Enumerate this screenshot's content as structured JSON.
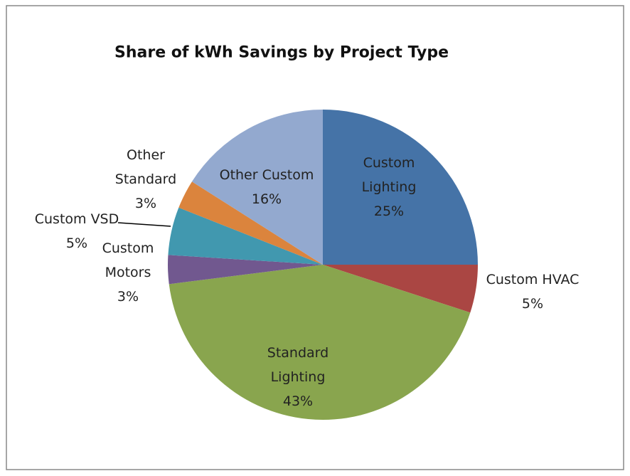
{
  "chart_data": {
    "type": "pie",
    "title": "Share of kWh Savings by Project Type",
    "categories": [
      "Custom Lighting",
      "Custom HVAC",
      "Standard Lighting",
      "Custom Motors",
      "Custom VSD",
      "Other Standard",
      "Other Custom"
    ],
    "values": [
      25,
      5,
      43,
      3,
      5,
      3,
      16
    ],
    "value_labels": [
      "25%",
      "5%",
      "43%",
      "3%",
      "5%",
      "3%",
      "16%"
    ],
    "colors": [
      "#4573a7",
      "#aa4643",
      "#89a54e",
      "#71588f",
      "#4198af",
      "#db843d",
      "#93a9cf"
    ]
  }
}
